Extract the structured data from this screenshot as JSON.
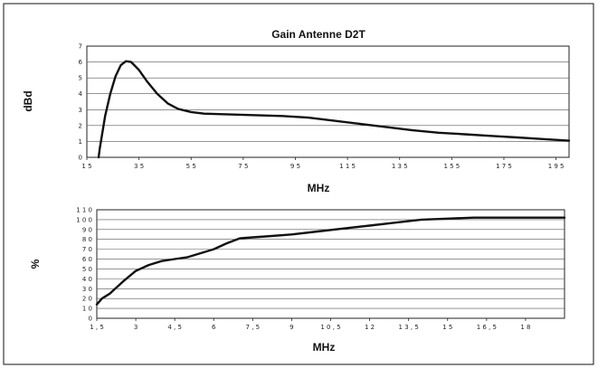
{
  "chart_data": [
    {
      "type": "line",
      "title": "Gain Antenne D2T",
      "xlabel": "MHz",
      "ylabel": "dBd",
      "xlim": [
        1.5,
        20.0
      ],
      "ylim": [
        0,
        7
      ],
      "x_ticks": [
        "1 5",
        "3 5",
        "5 5",
        "7 5",
        "9 5",
        "1 1 5",
        "1 3 5",
        "1 5 5",
        "1 7 5",
        "1 9 5"
      ],
      "y_ticks": [
        "0",
        "1",
        "2",
        "3",
        "4",
        "5",
        "6",
        "7"
      ],
      "grid": true,
      "series": [
        {
          "x": [
            1.95,
            2.0,
            2.2,
            2.4,
            2.6,
            2.8,
            3.0,
            3.2,
            3.5,
            3.8,
            4.2,
            4.6,
            5.0,
            5.5,
            6.0,
            7.0,
            8.0,
            9.0,
            10.0,
            11.0,
            12.0,
            13.0,
            14.0,
            15.0,
            16.0,
            17.0,
            18.0,
            19.0,
            20.0
          ],
          "y": [
            0.0,
            0.6,
            2.6,
            4.0,
            5.1,
            5.8,
            6.05,
            6.0,
            5.5,
            4.8,
            4.0,
            3.4,
            3.05,
            2.85,
            2.75,
            2.7,
            2.65,
            2.6,
            2.5,
            2.3,
            2.1,
            1.9,
            1.7,
            1.55,
            1.45,
            1.35,
            1.25,
            1.15,
            1.05
          ]
        }
      ]
    },
    {
      "type": "line",
      "title": "",
      "xlabel": "MHz",
      "ylabel": "%",
      "xlim": [
        1.5,
        19.5
      ],
      "ylim": [
        0,
        110
      ],
      "x_ticks": [
        "1 , 5",
        "3",
        "4 , 5",
        "6",
        "7 , 5",
        "9",
        "1 0 , 5",
        "1 2",
        "1 3 , 5",
        "1 5",
        "1 6 , 5",
        "1 8"
      ],
      "y_ticks": [
        "0",
        "1 0",
        "2 0",
        "3 0",
        "4 0",
        "5 0",
        "6 0",
        "7 0",
        "8 0",
        "9 0",
        "1 0 0",
        "1 1 0"
      ],
      "grid": true,
      "series": [
        {
          "x": [
            1.5,
            1.7,
            2.0,
            2.5,
            3.0,
            3.5,
            4.0,
            4.5,
            5.0,
            5.5,
            6.0,
            6.5,
            7.0,
            7.5,
            8.0,
            9.0,
            10.0,
            11.0,
            12.0,
            13.0,
            14.0,
            15.0,
            16.0,
            17.0,
            18.0,
            19.0,
            19.5
          ],
          "y": [
            14,
            20,
            25,
            37,
            48,
            54,
            58,
            60,
            62,
            66,
            70,
            76,
            81,
            82,
            83,
            85,
            88,
            91,
            94,
            97,
            100,
            101,
            102,
            102,
            102,
            102,
            102
          ]
        }
      ]
    }
  ]
}
